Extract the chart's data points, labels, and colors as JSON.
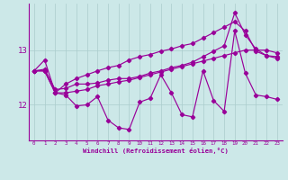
{
  "xlabel": "Windchill (Refroidissement éolien,°C)",
  "x": [
    0,
    1,
    2,
    3,
    4,
    5,
    6,
    7,
    8,
    9,
    10,
    11,
    12,
    13,
    14,
    15,
    16,
    17,
    18,
    19,
    20,
    21,
    22,
    23
  ],
  "line_volatile": [
    12.62,
    12.82,
    12.22,
    12.18,
    11.98,
    12.0,
    12.15,
    11.72,
    11.58,
    11.55,
    12.05,
    12.12,
    12.55,
    12.22,
    11.82,
    11.78,
    12.62,
    12.08,
    11.88,
    13.35,
    12.58,
    12.18,
    12.15,
    12.1
  ],
  "line_smooth1": [
    12.62,
    12.62,
    12.22,
    12.22,
    12.25,
    12.28,
    12.35,
    12.38,
    12.42,
    12.45,
    12.5,
    12.55,
    12.6,
    12.65,
    12.7,
    12.75,
    12.8,
    12.85,
    12.9,
    12.95,
    13.0,
    13.0,
    13.0,
    12.95
  ],
  "line_smooth2": [
    12.62,
    12.62,
    12.22,
    12.38,
    12.48,
    12.55,
    12.62,
    12.68,
    12.72,
    12.82,
    12.88,
    12.92,
    12.98,
    13.02,
    13.08,
    13.12,
    13.22,
    13.32,
    13.42,
    13.52,
    13.35,
    12.98,
    12.9,
    12.85
  ],
  "line_smooth3": [
    12.62,
    12.65,
    12.28,
    12.3,
    12.38,
    12.38,
    12.4,
    12.45,
    12.48,
    12.48,
    12.52,
    12.58,
    12.62,
    12.68,
    12.72,
    12.78,
    12.88,
    12.98,
    13.08,
    13.68,
    13.28,
    13.02,
    12.9,
    12.88
  ],
  "line_color": "#990099",
  "bg_color": "#cce8e8",
  "grid_color": "#aacccc",
  "ylim": [
    11.35,
    13.85
  ],
  "yticks": [
    12,
    13
  ],
  "xtick_labels": [
    "0",
    "1",
    "2",
    "3",
    "4",
    "5",
    "6",
    "7",
    "8",
    "9",
    "10",
    "11",
    "12",
    "13",
    "14",
    "15",
    "16",
    "17",
    "18",
    "19",
    "20",
    "21",
    "22",
    "23"
  ]
}
